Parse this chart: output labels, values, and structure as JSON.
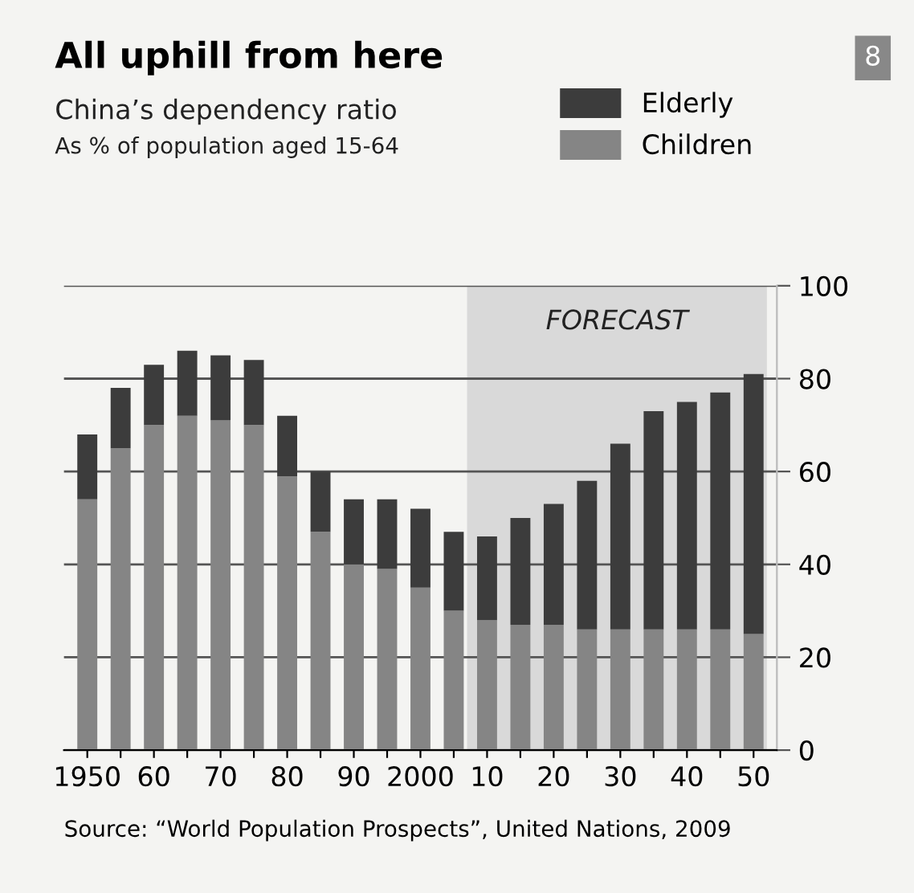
{
  "chart_data": {
    "type": "bar",
    "title": "All uphill from here",
    "subtitle": "China’s dependency ratio\nAs % of population aged 15-64",
    "categories": [
      "1950",
      null,
      "60",
      null,
      "70",
      null,
      "80",
      null,
      "90",
      null,
      "2000",
      null,
      "10",
      null,
      "20",
      null,
      "30",
      null,
      "40",
      null,
      "50"
    ],
    "series": [
      {
        "name": "Children",
        "color": "#858585",
        "values": [
          54,
          65,
          70,
          72,
          71,
          70,
          59,
          47,
          40,
          39,
          35,
          30,
          28,
          27,
          27,
          26,
          26,
          26,
          26,
          26,
          25
        ]
      },
      {
        "name": "Elderly",
        "color": "#3c3c3c",
        "values": [
          14,
          13,
          13,
          14,
          14,
          14,
          13,
          13,
          14,
          15,
          17,
          17,
          18,
          23,
          26,
          32,
          40,
          47,
          49,
          51,
          56
        ]
      }
    ],
    "stacked": true,
    "ylim": [
      0,
      100
    ],
    "yticks": [
      0,
      20,
      40,
      60,
      80,
      100
    ],
    "grid": "y",
    "legend": "top right",
    "bands": [
      {
        "axis": "x",
        "from": "10",
        "to": "50",
        "label": "FORECAST",
        "color": "#d9d9d9"
      }
    ],
    "annotations": [
      "Source: “World Population Prospects”, United Nations, 2009",
      "8"
    ]
  }
}
